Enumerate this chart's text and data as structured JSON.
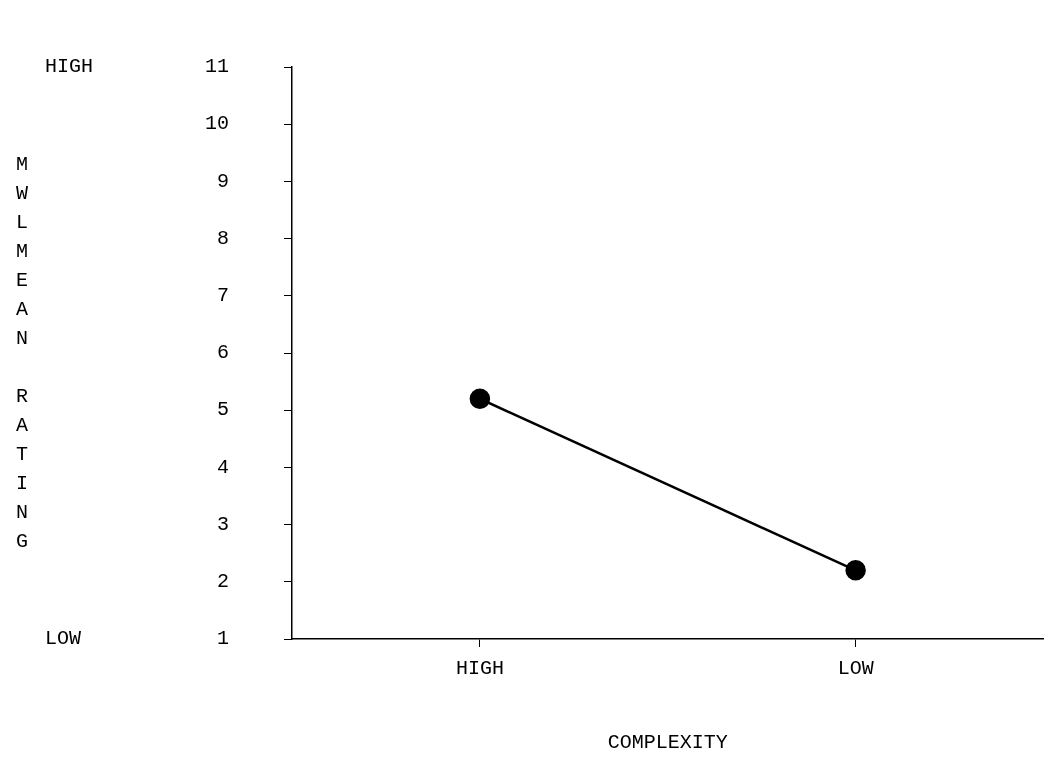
{
  "chart_data": {
    "type": "line",
    "xlabel": "COMPLEXITY",
    "ylabel": "MWLMEAN RATING",
    "categories": [
      "HIGH",
      "LOW"
    ],
    "series": [
      {
        "color": "#000000",
        "values": [
          5.2,
          2.2
        ]
      }
    ],
    "ylim": [
      1,
      11
    ],
    "yticks": [
      1,
      2,
      3,
      4,
      5,
      6,
      7,
      8,
      9,
      10,
      11
    ],
    "annotations": [
      "HIGH",
      "LOW"
    ],
    "grid": false,
    "legend": false,
    "marker": "circle",
    "line_style": "solid"
  }
}
